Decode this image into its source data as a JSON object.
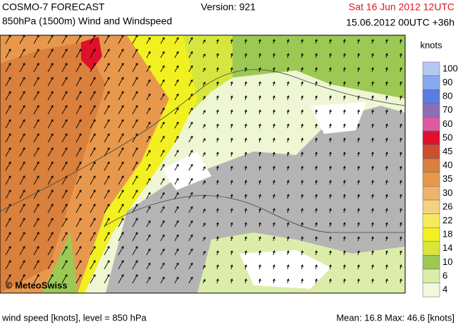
{
  "header": {
    "title": "COSMO-7 FORECAST",
    "subtitle": "850hPa (1500m) Wind and Windspeed",
    "version": "Version: 921",
    "valid_time": "Sat 16 Jun 2012 12UTC",
    "run_time": "15.06.2012 00UTC +36h"
  },
  "map": {
    "copyright": "© MeteoSwiss"
  },
  "legend": {
    "title": "knots",
    "entries": [
      {
        "label": "100",
        "color": "#b4c8f2"
      },
      {
        "label": "90",
        "color": "#8aa8ee"
      },
      {
        "label": "80",
        "color": "#5b7de2"
      },
      {
        "label": "70",
        "color": "#8a6fb6"
      },
      {
        "label": "60",
        "color": "#e05aa0"
      },
      {
        "label": "50",
        "color": "#e0102c"
      },
      {
        "label": "45",
        "color": "#c8502e"
      },
      {
        "label": "40",
        "color": "#d8803c"
      },
      {
        "label": "35",
        "color": "#e8984c"
      },
      {
        "label": "30",
        "color": "#f0b468"
      },
      {
        "label": "26",
        "color": "#f4d284"
      },
      {
        "label": "22",
        "color": "#f8ea60"
      },
      {
        "label": "18",
        "color": "#f2f020"
      },
      {
        "label": "14",
        "color": "#d6e63e"
      },
      {
        "label": "10",
        "color": "#9cc854"
      },
      {
        "label": "6",
        "color": "#dcedaa"
      },
      {
        "label": "4",
        "color": "#f2f8dc"
      }
    ]
  },
  "footer": {
    "description": "wind speed [knots], level = 850 hPa",
    "stats": "Mean:  16.8 Max:  46.6 [knots]"
  }
}
